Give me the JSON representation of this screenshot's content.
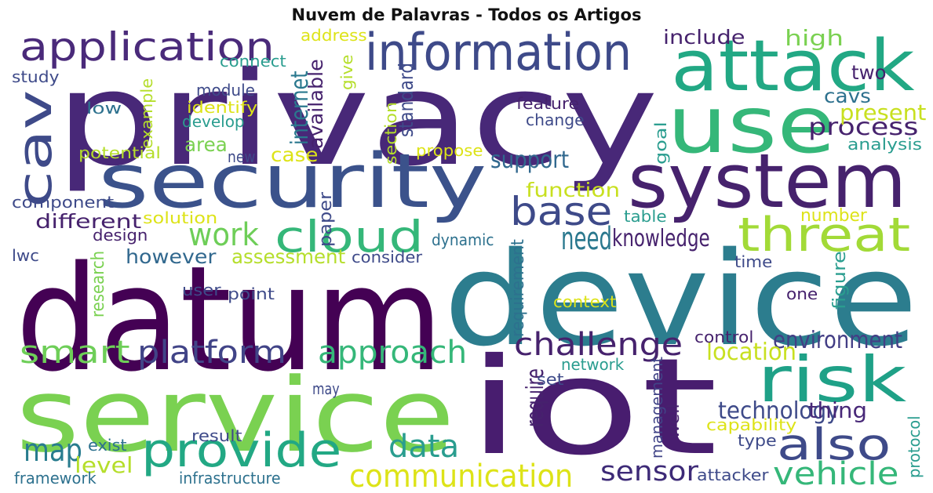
{
  "title": "Nuvem de Palavras - Todos os Artigos",
  "palette": {
    "dark_purple": "#440154",
    "purple": "#482878",
    "indigo": "#3e4989",
    "blue": "#31688e",
    "teal": "#26828e",
    "green_teal": "#1f9e89",
    "green": "#35b779",
    "lime": "#6ece58",
    "yellow_green": "#b5de2b",
    "yellow": "#dce319"
  },
  "words": [
    {
      "text": "privacy",
      "color": "#482878"
    },
    {
      "text": "datum",
      "color": "#440154"
    },
    {
      "text": "device",
      "color": "#2c7d8e"
    },
    {
      "text": "iot",
      "color": "#481d6f"
    },
    {
      "text": "service",
      "color": "#7ad151"
    },
    {
      "text": "use",
      "color": "#35b779"
    },
    {
      "text": "security",
      "color": "#3b528b"
    },
    {
      "text": "system",
      "color": "#46226d"
    },
    {
      "text": "attack",
      "color": "#22a884"
    },
    {
      "text": "information",
      "color": "#3e4a89"
    },
    {
      "text": "application",
      "color": "#4a2a7a"
    },
    {
      "text": "cav",
      "color": "#3e4a89"
    },
    {
      "text": "threat",
      "color": "#a2da37"
    },
    {
      "text": "risk",
      "color": "#1fa187"
    },
    {
      "text": "provide",
      "color": "#22a884"
    },
    {
      "text": "also",
      "color": "#3e4a89"
    },
    {
      "text": "cloud",
      "color": "#35b779"
    },
    {
      "text": "base",
      "color": "#3e4a89"
    },
    {
      "text": "challenge",
      "color": "#46226d"
    },
    {
      "text": "approach",
      "color": "#35b779"
    },
    {
      "text": "platform",
      "color": "#414487"
    },
    {
      "text": "smart",
      "color": "#6ece58"
    },
    {
      "text": "work",
      "color": "#6ece58"
    },
    {
      "text": "need",
      "color": "#2a788e"
    },
    {
      "text": "data",
      "color": "#2a9d8f"
    },
    {
      "text": "communication",
      "color": "#dde318"
    },
    {
      "text": "sensor",
      "color": "#3d2a77"
    },
    {
      "text": "vehicle",
      "color": "#35b779"
    },
    {
      "text": "map",
      "color": "#287c8e"
    },
    {
      "text": "technology",
      "color": "#3e4a89"
    },
    {
      "text": "environment",
      "color": "#433e85"
    },
    {
      "text": "location",
      "color": "#c8e020"
    },
    {
      "text": "knowledge",
      "color": "#46226d"
    },
    {
      "text": "support",
      "color": "#31688e"
    },
    {
      "text": "function",
      "color": "#c8e020"
    },
    {
      "text": "process",
      "color": "#46226d"
    },
    {
      "text": "present",
      "color": "#c8e020"
    },
    {
      "text": "cavs",
      "color": "#2d718e"
    },
    {
      "text": "two",
      "color": "#46226d"
    },
    {
      "text": "high",
      "color": "#7ad151"
    },
    {
      "text": "include",
      "color": "#46226d"
    },
    {
      "text": "analysis",
      "color": "#2a9d8f"
    },
    {
      "text": "different",
      "color": "#46226d"
    },
    {
      "text": "however",
      "color": "#31688e"
    },
    {
      "text": "assessment",
      "color": "#b5de2b"
    },
    {
      "text": "case",
      "color": "#dde318"
    },
    {
      "text": "area",
      "color": "#7ad151"
    },
    {
      "text": "level",
      "color": "#b5de2b"
    },
    {
      "text": "thing",
      "color": "#482878"
    },
    {
      "text": "require",
      "color": "#46226d"
    },
    {
      "text": "number",
      "color": "#dde318"
    },
    {
      "text": "internet",
      "color": "#2a788e"
    },
    {
      "text": "standard",
      "color": "#3e4a89"
    },
    {
      "text": "available",
      "color": "#46226d"
    },
    {
      "text": "give",
      "color": "#b5de2b"
    },
    {
      "text": "section",
      "color": "#b5de2b"
    },
    {
      "text": "paper",
      "color": "#3e4a89"
    },
    {
      "text": "requirement",
      "color": "#2d718e"
    },
    {
      "text": "research",
      "color": "#7ad151"
    },
    {
      "text": "management",
      "color": "#414487"
    },
    {
      "text": "protocol",
      "color": "#2a9d8f"
    },
    {
      "text": "figure",
      "color": "#2a9d8f"
    },
    {
      "text": "goal",
      "color": "#2a9d8f"
    },
    {
      "text": "example",
      "color": "#b5de2b"
    },
    {
      "text": "well",
      "color": "#46226d"
    },
    {
      "text": "address",
      "color": "#dde318"
    },
    {
      "text": "connect",
      "color": "#2a9d8f"
    },
    {
      "text": "study",
      "color": "#3e4a89"
    },
    {
      "text": "module",
      "color": "#3e4a89"
    },
    {
      "text": "low",
      "color": "#2d718e"
    },
    {
      "text": "identify",
      "color": "#dde318"
    },
    {
      "text": "develop",
      "color": "#2a9d8f"
    },
    {
      "text": "feature",
      "color": "#46226d"
    },
    {
      "text": "change",
      "color": "#3e4a89"
    },
    {
      "text": "propose",
      "color": "#dde318"
    },
    {
      "text": "potential",
      "color": "#b5de2b"
    },
    {
      "text": "new",
      "color": "#3e4a89"
    },
    {
      "text": "component",
      "color": "#3e4a89"
    },
    {
      "text": "solution",
      "color": "#dde318"
    },
    {
      "text": "design",
      "color": "#46226d"
    },
    {
      "text": "dynamic",
      "color": "#2d718e"
    },
    {
      "text": "table",
      "color": "#2a9d8f"
    },
    {
      "text": "lwc",
      "color": "#3e4a89"
    },
    {
      "text": "consider",
      "color": "#3e4a89"
    },
    {
      "text": "time",
      "color": "#3e4a89"
    },
    {
      "text": "user",
      "color": "#3e4a89"
    },
    {
      "text": "point",
      "color": "#3e4a89"
    },
    {
      "text": "context",
      "color": "#dde318"
    },
    {
      "text": "one",
      "color": "#46226d"
    },
    {
      "text": "control",
      "color": "#46226d"
    },
    {
      "text": "network",
      "color": "#2a9d8f"
    },
    {
      "text": "may",
      "color": "#3e4a89"
    },
    {
      "text": "set",
      "color": "#3e4a89"
    },
    {
      "text": "capability",
      "color": "#dde318"
    },
    {
      "text": "result",
      "color": "#3e4a89"
    },
    {
      "text": "exist",
      "color": "#2d718e"
    },
    {
      "text": "type",
      "color": "#3e4a89"
    },
    {
      "text": "framework",
      "color": "#2d718e"
    },
    {
      "text": "infrastructure",
      "color": "#2d718e"
    },
    {
      "text": "attacker",
      "color": "#3e4a89"
    }
  ]
}
